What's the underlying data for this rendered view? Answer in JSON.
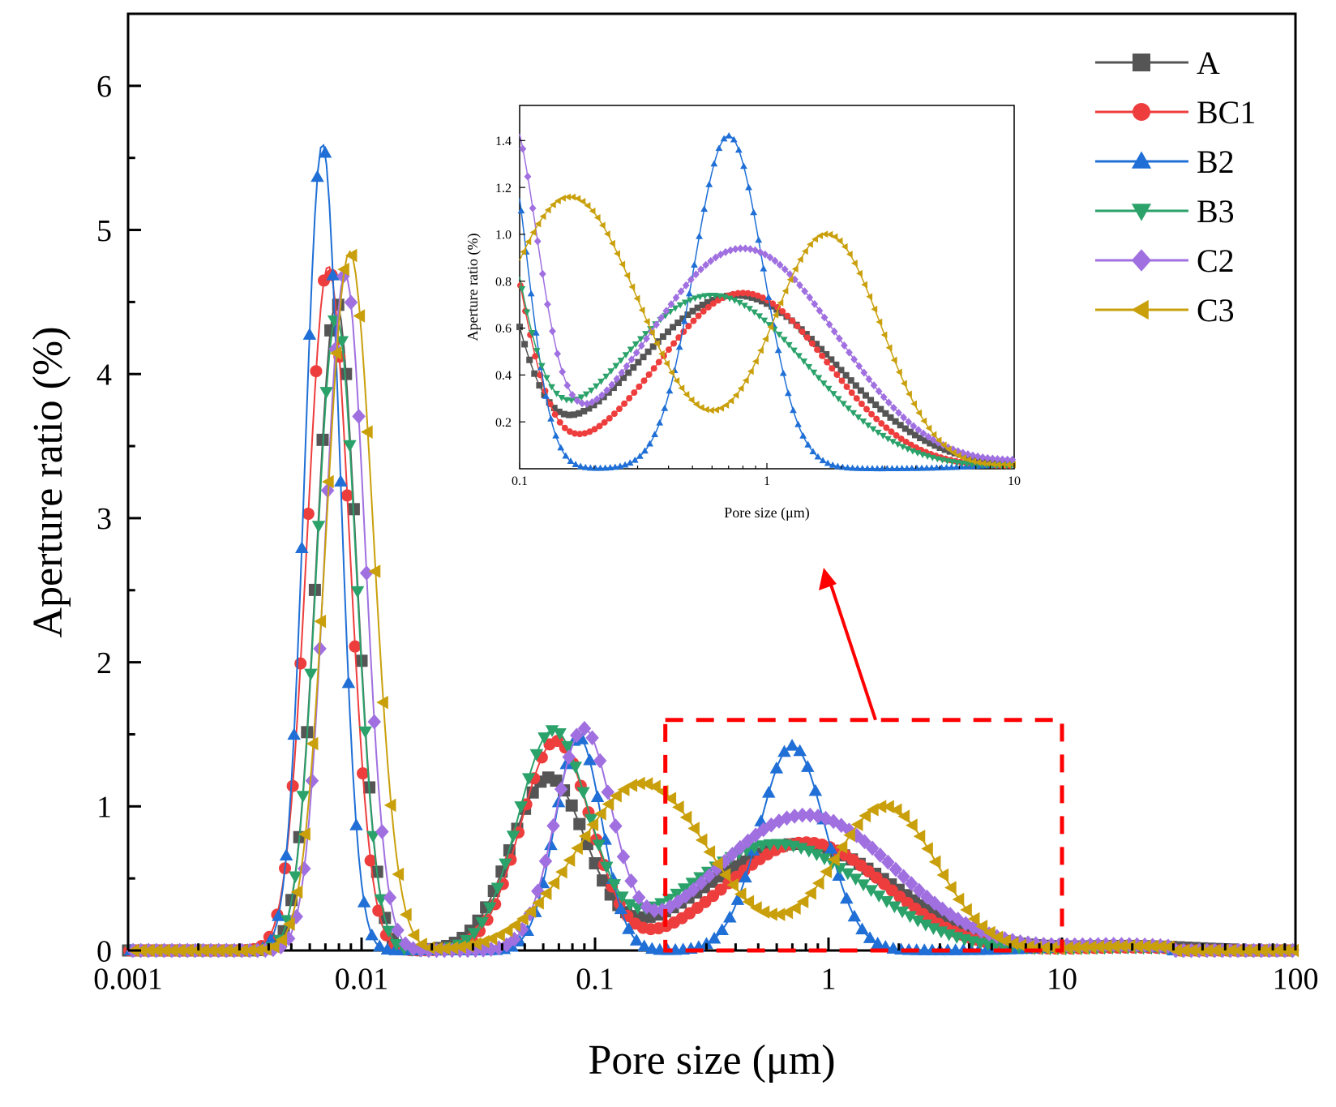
{
  "chart_data": [
    {
      "id": "main",
      "type": "line",
      "xlabel": "Pore size (μm)",
      "ylabel": "Aperture ratio (%)",
      "xscale": "log",
      "xlim": [
        0.001,
        100
      ],
      "ylim": [
        0,
        6.5
      ],
      "x_ticks": [
        "0.001",
        "0.01",
        "0.1",
        "1",
        "10",
        "100"
      ],
      "y_ticks": [
        "0",
        "1",
        "2",
        "3",
        "4",
        "5",
        "6"
      ],
      "grid": false,
      "legend": "top-right",
      "series": [
        {
          "name": "A",
          "color": "#555555",
          "marker": "square",
          "peaks": [
            {
              "x": 0.0078,
              "y": 4.5,
              "w": 0.085
            },
            {
              "x": 0.063,
              "y": 1.18,
              "w": 0.16
            },
            {
              "x": 0.75,
              "y": 0.74,
              "w": 0.4
            }
          ],
          "tail": {
            "x": 20,
            "y": 0.03
          },
          "range": [
            0.001,
            55
          ]
        },
        {
          "name": "BC1",
          "color": "#ee3d3d",
          "marker": "circle",
          "peaks": [
            {
              "x": 0.0072,
              "y": 4.75,
              "w": 0.09
            },
            {
              "x": 0.068,
              "y": 1.45,
              "w": 0.15
            },
            {
              "x": 0.8,
              "y": 0.75,
              "w": 0.34
            }
          ],
          "tail": {
            "x": 20,
            "y": 0.02
          },
          "range": [
            0.001,
            30
          ]
        },
        {
          "name": "B2",
          "color": "#1f6fd6",
          "marker": "triangle-up",
          "peaks": [
            {
              "x": 0.0068,
              "y": 5.6,
              "w": 0.075
            },
            {
              "x": 0.085,
              "y": 1.48,
              "w": 0.1
            },
            {
              "x": 0.7,
              "y": 1.42,
              "w": 0.14
            }
          ],
          "tail": {
            "x": 16,
            "y": 0.03
          },
          "range": [
            0.001,
            30
          ]
        },
        {
          "name": "B3",
          "color": "#2aa26a",
          "marker": "triangle-down",
          "peaks": [
            {
              "x": 0.0078,
              "y": 4.4,
              "w": 0.085
            },
            {
              "x": 0.066,
              "y": 1.5,
              "w": 0.15
            },
            {
              "x": 0.6,
              "y": 0.74,
              "w": 0.38
            }
          ],
          "tail": {
            "x": 20,
            "y": 0.02
          },
          "range": [
            0.001,
            30
          ]
        },
        {
          "name": "C2",
          "color": "#a070e0",
          "marker": "diamond",
          "peaks": [
            {
              "x": 0.0085,
              "y": 4.7,
              "w": 0.085
            },
            {
              "x": 0.089,
              "y": 1.5,
              "w": 0.12
            },
            {
              "x": 0.8,
              "y": 0.94,
              "w": 0.38
            }
          ],
          "tail": {
            "x": 18,
            "y": 0.04
          },
          "range": [
            0.001,
            30
          ]
        },
        {
          "name": "C3",
          "color": "#c9a00c",
          "marker": "triangle-left",
          "peaks": [
            {
              "x": 0.0089,
              "y": 4.85,
              "w": 0.1
            },
            {
              "x": 0.16,
              "y": 1.16,
              "w": 0.28
            },
            {
              "x": 1.75,
              "y": 1.0,
              "w": 0.22
            }
          ],
          "tail": {
            "x": 20,
            "y": 0.03
          },
          "range": [
            0.001,
            30
          ]
        }
      ]
    },
    {
      "id": "inset",
      "type": "line",
      "xlabel": "Pore size (μm)",
      "ylabel": "Aperture ratio (%)",
      "xscale": "log",
      "xlim": [
        0.1,
        10
      ],
      "ylim": [
        0,
        1.55
      ],
      "x_ticks": [
        "0.1",
        "1",
        "10"
      ],
      "y_ticks": [
        "0.2",
        "0.4",
        "0.6",
        "0.8",
        "1.0",
        "1.2",
        "1.4"
      ],
      "grid": false
    }
  ],
  "annotation": {
    "zoom_box_x": [
      0.2,
      10
    ],
    "zoom_box_y": [
      0,
      1.6
    ],
    "color": "#ff0000"
  }
}
